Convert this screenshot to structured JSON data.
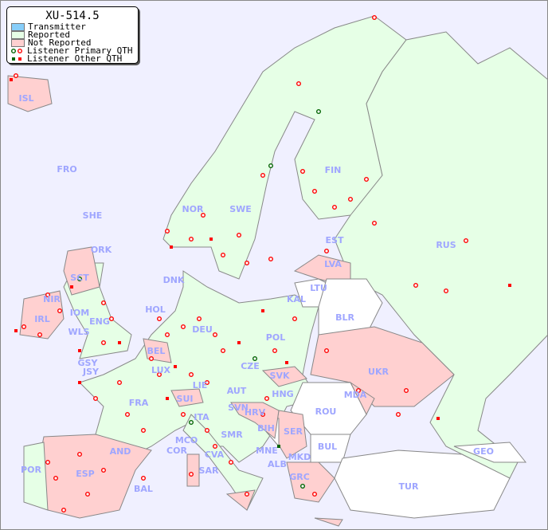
{
  "legend": {
    "title": "XU-514.5",
    "items": [
      {
        "label": "Transmitter",
        "color": "#87cefa"
      },
      {
        "label": "Reported",
        "color": "#e6ffe6"
      },
      {
        "label": "Not Reported",
        "color": "#ffd0d0"
      },
      {
        "label": "Listener Primary QTH",
        "colors": [
          "#006400",
          "#ff0000"
        ],
        "shape": "open-circle"
      },
      {
        "label": "Listener Other QTH",
        "colors": [
          "#006400",
          "#ff0000"
        ],
        "shape": "square"
      }
    ]
  },
  "colors": {
    "sea": "#f0f0ff",
    "reported": "#e6ffe6",
    "not_reported": "#ffd0d0",
    "no_data": "#ffffff",
    "border": "#888888",
    "label": "#9fa6ff"
  },
  "countries": {
    "reported": [
      "NOR",
      "SWE",
      "FIN",
      "EST",
      "RUS",
      "KAL",
      "DNK",
      "POL",
      "HOL",
      "DEU",
      "IOM",
      "WLS",
      "ENG",
      "GSY",
      "JSY",
      "LUX",
      "CZE",
      "FRA",
      "LIE",
      "AUT",
      "HNG",
      "ITA",
      "MCO",
      "COR",
      "SMR",
      "CVA",
      "MNE",
      "POR",
      "SHE",
      "ORK",
      "FRO"
    ],
    "not_reported": [
      "ISL",
      "LVA",
      "SCT",
      "NIR",
      "IRL",
      "BEL",
      "SVK",
      "UKR",
      "MDA",
      "SUI",
      "SVN",
      "HRV",
      "SER",
      "ALB",
      "MKD",
      "GRC",
      "ESP",
      "BAL",
      "AND",
      "SAR"
    ],
    "no_data": [
      "LTU",
      "BLR",
      "ROU",
      "BIH",
      "BUL",
      "TUR",
      "GEO"
    ]
  },
  "labels": [
    "ISL",
    "FRO",
    "SHE",
    "ORK",
    "NOR",
    "SWE",
    "FIN",
    "EST",
    "RUS",
    "LVA",
    "LTU",
    "KAL",
    "DNK",
    "BLR",
    "POL",
    "HOL",
    "DEU",
    "IRL",
    "IOM",
    "WLS",
    "ENG",
    "GSY",
    "JSY",
    "BEL",
    "LUX",
    "CZE",
    "SVK",
    "UKR",
    "FRA",
    "SUI",
    "LIE",
    "AUT",
    "HNG",
    "MDA",
    "ROU",
    "SVN",
    "HRV",
    "BIH",
    "SER",
    "ITA",
    "MCO",
    "COR",
    "SMR",
    "CVA",
    "MNE",
    "ALB",
    "MKD",
    "BUL",
    "GEO",
    "AND",
    "POR",
    "ESP",
    "BAL",
    "SAR",
    "GRC",
    "TUR",
    "SCT",
    "NIR"
  ]
}
